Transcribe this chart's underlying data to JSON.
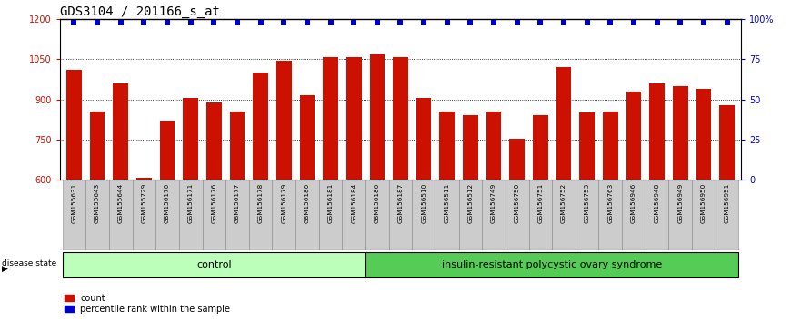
{
  "title": "GDS3104 / 201166_s_at",
  "samples": [
    "GSM155631",
    "GSM155643",
    "GSM155644",
    "GSM155729",
    "GSM156170",
    "GSM156171",
    "GSM156176",
    "GSM156177",
    "GSM156178",
    "GSM156179",
    "GSM156180",
    "GSM156181",
    "GSM156184",
    "GSM156186",
    "GSM156187",
    "GSM156510",
    "GSM156511",
    "GSM156512",
    "GSM156749",
    "GSM156750",
    "GSM156751",
    "GSM156752",
    "GSM156753",
    "GSM156763",
    "GSM156946",
    "GSM156948",
    "GSM156949",
    "GSM156950",
    "GSM156951"
  ],
  "bar_values": [
    1010,
    855,
    960,
    608,
    820,
    905,
    890,
    855,
    1000,
    1045,
    915,
    1058,
    1060,
    1068,
    1058,
    905,
    855,
    840,
    855,
    755,
    840,
    1020,
    850,
    855,
    930,
    960,
    950,
    940,
    880
  ],
  "percentile_values": [
    98,
    98,
    98,
    98,
    98,
    98,
    98,
    98,
    98,
    98,
    98,
    98,
    98,
    98,
    98,
    98,
    98,
    98,
    98,
    98,
    98,
    98,
    98,
    98,
    98,
    98,
    98,
    98,
    98
  ],
  "group_labels": [
    "control",
    "insulin-resistant polycystic ovary syndrome"
  ],
  "group_sizes": [
    13,
    16
  ],
  "group_colors": [
    "#bbffbb",
    "#55cc55"
  ],
  "bar_color": "#cc1100",
  "dot_color": "#0000cc",
  "ylim_left": [
    600,
    1200
  ],
  "ylim_right": [
    0,
    100
  ],
  "yticks_left": [
    600,
    750,
    900,
    1050,
    1200
  ],
  "yticks_right": [
    0,
    25,
    50,
    75,
    100
  ],
  "background_color": "#ffffff",
  "title_fontsize": 10,
  "tick_fontsize": 7,
  "label_fontsize": 8
}
